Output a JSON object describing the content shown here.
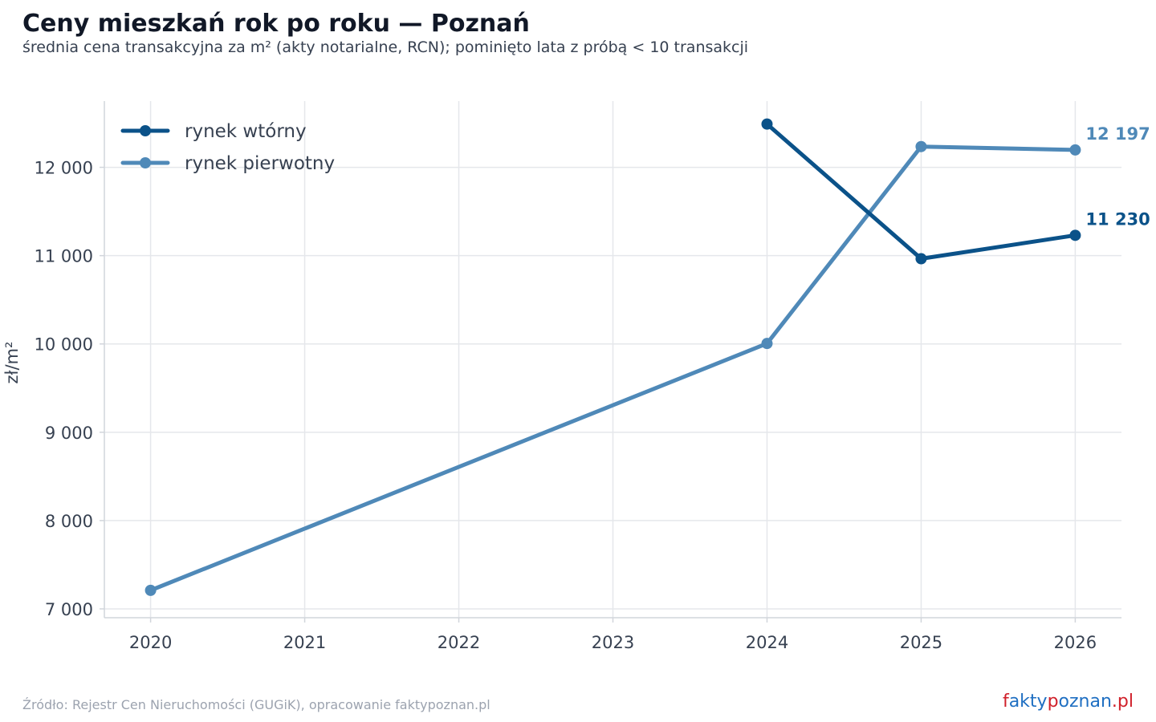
{
  "title": "Ceny mieszkań rok po roku — Poznań",
  "subtitle": "średnia cena transakcyjna za m² (akty notarialne, RCN); pominięto lata z próbą < 10 transakcji",
  "source": "Źródło: Rejestr Cen Nieruchomości (GUGiK), opracowanie faktypoznan.pl",
  "brand": {
    "parts": [
      "f",
      "akty",
      "p",
      "oznan",
      ".pl"
    ],
    "colors": [
      "#d0202a",
      "#1f6fc2"
    ]
  },
  "colors": {
    "grid": "#e5e7eb",
    "axis": "#d1d5db"
  },
  "chart_data": {
    "type": "line",
    "xlabel": "",
    "ylabel": "zł/m²",
    "x": [
      2020,
      2021,
      2022,
      2023,
      2024,
      2025,
      2026
    ],
    "x_ticks": [
      "2020",
      "2021",
      "2022",
      "2023",
      "2024",
      "2025",
      "2026"
    ],
    "ylim": [
      6900,
      12750
    ],
    "y_ticks": [
      7000,
      8000,
      9000,
      10000,
      11000,
      12000
    ],
    "y_tick_labels": [
      "7 000",
      "8 000",
      "9 000",
      "10 000",
      "11 000",
      "12 000"
    ],
    "grid": true,
    "legend_position": "top-left",
    "series": [
      {
        "name": "rynek wtórny",
        "color": "#0b5289",
        "points": [
          {
            "x": 2024,
            "y": 12490
          },
          {
            "x": 2025,
            "y": 10965
          },
          {
            "x": 2026,
            "y": 11230
          }
        ],
        "end_label": "11 230"
      },
      {
        "name": "rynek pierwotny",
        "color": "#4f89b8",
        "points": [
          {
            "x": 2020,
            "y": 7210
          },
          {
            "x": 2024,
            "y": 10005
          },
          {
            "x": 2025,
            "y": 12235
          },
          {
            "x": 2026,
            "y": 12197
          }
        ],
        "end_label": "12 197"
      }
    ]
  }
}
